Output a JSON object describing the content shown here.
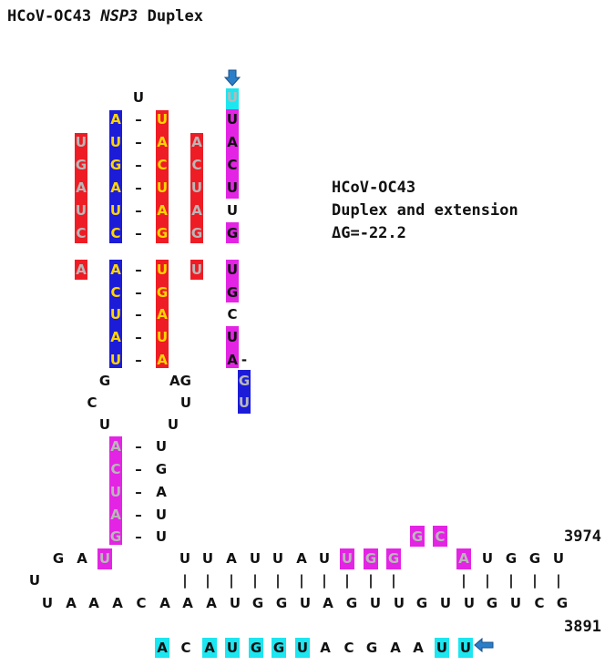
{
  "title": {
    "name": "HCoV-OC43",
    "gene": "NSP3",
    "suffix": "Duplex"
  },
  "info": {
    "line1": "HCoV-OC43",
    "line2": "Duplex and extension",
    "line3": "ΔG=-22.2"
  },
  "numbers": {
    "top": "3974",
    "bottom": "3891"
  },
  "colors": {
    "red": "#ee1c24",
    "blue": "#1c1cd8",
    "magenta": "#e424e4",
    "cyan": "#1ce6f0",
    "yellow_text": "#ffd600",
    "grey_text": "#b8b8b8",
    "black_text": "#111111"
  },
  "stem": {
    "col_a": [
      "U",
      "G",
      "A",
      "U",
      "C",
      "A"
    ],
    "col_b": [
      "U",
      "A",
      "U",
      "G",
      "A",
      "U",
      "C",
      "A",
      "C",
      "U",
      "A",
      "U"
    ],
    "col_c": [
      "U",
      "A",
      "C",
      "U",
      "A",
      "G",
      "U",
      "G",
      "A",
      "U",
      "A"
    ],
    "col_d": [
      "A",
      "C",
      "U",
      "A",
      "G",
      "U"
    ],
    "col_e": [
      "U",
      "U",
      "A",
      "C",
      "U",
      "U",
      "G",
      "U",
      "G",
      "C",
      "U",
      "A",
      "G",
      "U"
    ]
  },
  "loops": {
    "left": [
      "G",
      "C",
      "U"
    ],
    "right": [
      "A",
      "G",
      "U",
      "U"
    ]
  },
  "lower_stem": {
    "left": [
      "A",
      "C",
      "U",
      "A",
      "G"
    ],
    "right": [
      "U",
      "G",
      "A",
      "U",
      "U"
    ]
  },
  "mrna_top": [
    "G",
    "A",
    "U",
    "U",
    "U",
    "A",
    "U",
    "U",
    "A",
    "U",
    "U",
    "G",
    "G",
    "G",
    "C",
    "A",
    "U",
    "G",
    "G",
    "U"
  ],
  "mrna_bend": "U",
  "mrna_bottom": [
    "U",
    "A",
    "A",
    "A",
    "C",
    "A",
    "A",
    "A",
    "U",
    "G",
    "G",
    "U",
    "A",
    "G",
    "U",
    "U",
    "G",
    "U",
    "U",
    "G",
    "U",
    "C",
    "G"
  ],
  "mirna": [
    "A",
    "C",
    "A",
    "U",
    "G",
    "G",
    "U",
    "A",
    "C",
    "G",
    "A",
    "A",
    "U",
    "U"
  ],
  "symbols": {
    "dash": "–",
    "bar": "|"
  },
  "icons": {
    "arrow_down": "arrow-down-icon",
    "arrow_left": "arrow-left-icon"
  }
}
